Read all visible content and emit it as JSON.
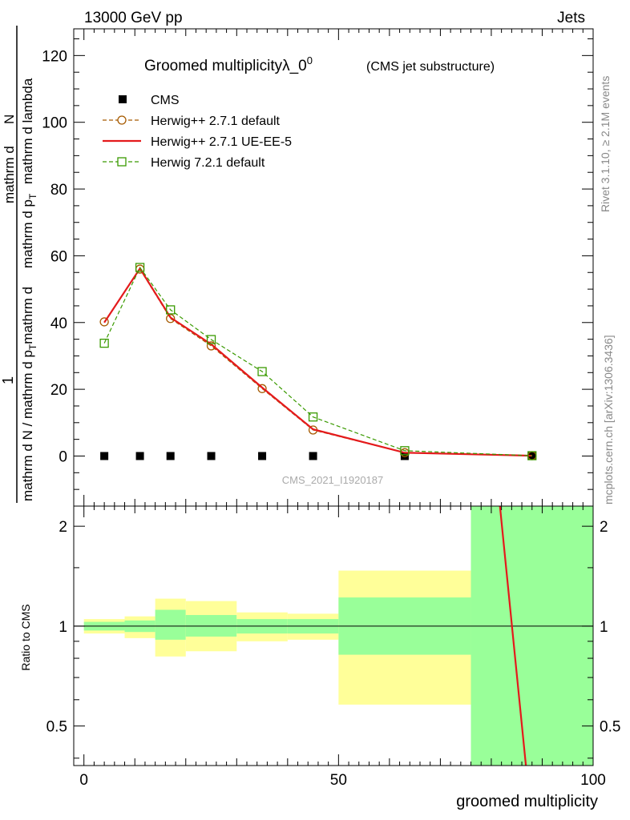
{
  "header": {
    "energy_label": "13000 GeV pp",
    "process_label": "Jets"
  },
  "side_labels": {
    "rivet": "Rivet 3.1.10, ≥ 2.1M events",
    "mcplots": "mcplots.cern.ch [arXiv:1306.3436]"
  },
  "chart_data": [
    {
      "type": "line",
      "title": "Groomed multiplicityλ_0",
      "title_superscript": "0",
      "subtitle": "(CMS jet substructure)",
      "watermark": "CMS_2021_I1920187",
      "ylabel": "1/N dN/dλ (mathrm d N / mathrm d p_T mathrm d p_T mathrm d lambda)",
      "ylabel_numerator_1": "1",
      "ylabel_numerator_2": "mathrm d",
      "ylabel_numerator_N": "N",
      "ylabel_denominator_1": "mathrm d N / mathrm d p",
      "ylabel_denominator_2": "mathrm d p",
      "ylabel_denominator_3": "mathrm d p",
      "ylabel_denominator_4": "mathrm d lambda",
      "ylabel_denominator_mid": "mathrm d",
      "ylabel_subscript": "T",
      "xlim": [
        -2,
        100
      ],
      "ylim": [
        -15,
        128
      ],
      "yticks": [
        0,
        20,
        40,
        60,
        80,
        100,
        120
      ],
      "series": [
        {
          "name": "CMS",
          "style": "data",
          "color": "#000000",
          "x": [
            4,
            11,
            17,
            25,
            35,
            45,
            63,
            88
          ],
          "y": [
            0,
            0,
            0,
            0,
            0,
            0,
            0,
            0
          ]
        },
        {
          "name": "Herwig++ 2.7.1 default",
          "style": "circle-dashed",
          "color": "#a65a00",
          "x": [
            4,
            11,
            17,
            25,
            35,
            45,
            63,
            88
          ],
          "y": [
            40.2,
            56.0,
            41.2,
            33.0,
            20.2,
            7.8,
            1.0,
            0.1
          ]
        },
        {
          "name": "Herwig++ 2.7.1 UE-EE-5",
          "style": "solid",
          "color": "#e41a1c",
          "x": [
            4,
            11,
            17,
            25,
            35,
            45,
            63,
            88
          ],
          "y": [
            40.0,
            56.2,
            41.5,
            33.5,
            20.5,
            8.0,
            1.0,
            0.1
          ]
        },
        {
          "name": "Herwig 7.2.1 default",
          "style": "square-dashed",
          "color": "#3a9a00",
          "x": [
            4,
            11,
            17,
            25,
            35,
            45,
            63,
            88
          ],
          "y": [
            33.8,
            56.5,
            43.8,
            34.9,
            25.3,
            11.7,
            1.6,
            0.1
          ]
        }
      ]
    },
    {
      "type": "area",
      "ylabel": "Ratio to CMS",
      "xlabel": "groomed multiplicity",
      "xlim": [
        -2,
        100
      ],
      "ylim": [
        0.38,
        2.3
      ],
      "yticks": [
        0.5,
        1,
        2
      ],
      "xticks": [
        0,
        50,
        100
      ],
      "reference_line": 1,
      "bands": [
        {
          "x0": 0,
          "x1": 8,
          "outer": [
            0.95,
            1.05
          ],
          "inner": [
            0.97,
            1.03
          ]
        },
        {
          "x0": 8,
          "x1": 14,
          "outer": [
            0.92,
            1.07
          ],
          "inner": [
            0.96,
            1.04
          ]
        },
        {
          "x0": 14,
          "x1": 20,
          "outer": [
            0.81,
            1.21
          ],
          "inner": [
            0.91,
            1.12
          ]
        },
        {
          "x0": 20,
          "x1": 30,
          "outer": [
            0.84,
            1.19
          ],
          "inner": [
            0.93,
            1.08
          ]
        },
        {
          "x0": 30,
          "x1": 40,
          "outer": [
            0.9,
            1.1
          ],
          "inner": [
            0.95,
            1.05
          ]
        },
        {
          "x0": 40,
          "x1": 50,
          "outer": [
            0.91,
            1.09
          ],
          "inner": [
            0.95,
            1.05
          ]
        },
        {
          "x0": 50,
          "x1": 76,
          "outer": [
            0.58,
            1.47
          ],
          "inner": [
            0.82,
            1.22
          ]
        },
        {
          "x0": 76,
          "x1": 100,
          "outer": [
            0.38,
            2.3
          ],
          "inner": [
            0.38,
            2.3
          ]
        }
      ],
      "outer_color": "#ffff99",
      "inner_color": "#99ff99",
      "ratio_curve": {
        "color": "#e41a1c",
        "x": [
          81.7,
          86.8
        ],
        "y": [
          2.3,
          0.38
        ]
      }
    }
  ]
}
